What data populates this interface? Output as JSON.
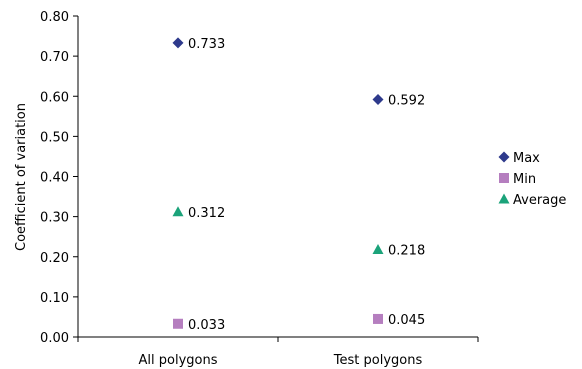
{
  "chart_data": {
    "type": "scatter",
    "categories": [
      "All polygons",
      "Test polygons"
    ],
    "ylabel": "Coefficient of variation",
    "ylim": [
      0,
      0.8
    ],
    "yticks": [
      "0.00",
      "0.10",
      "0.20",
      "0.30",
      "0.40",
      "0.50",
      "0.60",
      "0.70",
      "0.80"
    ],
    "grid": false,
    "legend_position": "right",
    "series": [
      {
        "name": "Max",
        "marker": "diamond",
        "color": "#2E3A8C",
        "values": [
          0.733,
          0.592
        ],
        "labels": [
          "0.733",
          "0.592"
        ]
      },
      {
        "name": "Min",
        "marker": "square",
        "color": "#B57EBF",
        "values": [
          0.033,
          0.045
        ],
        "labels": [
          "0.033",
          "0.045"
        ]
      },
      {
        "name": "Average",
        "marker": "triangle",
        "color": "#1BA37A",
        "values": [
          0.312,
          0.218
        ],
        "labels": [
          "0.312",
          "0.218"
        ]
      }
    ]
  }
}
